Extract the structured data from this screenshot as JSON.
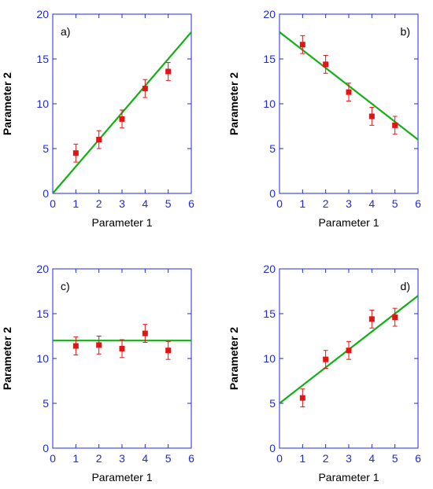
{
  "colors": {
    "axis": "#1f2bd6",
    "text": "#000000",
    "tick_label": "#1f2bd6",
    "points": "#e21414",
    "fit_line": "#12b014"
  },
  "chart_data": [
    {
      "type": "scatter",
      "panel_label": "a)",
      "xlabel": "Parameter 1",
      "ylabel": "Parameter 2",
      "xlim": [
        0,
        6
      ],
      "ylim": [
        0,
        20
      ],
      "xticks": [
        0,
        1,
        2,
        3,
        4,
        5,
        6
      ],
      "yticks": [
        0,
        5,
        10,
        15,
        20
      ],
      "grid": false,
      "series": [
        {
          "x": [
            1,
            2,
            3,
            4,
            5
          ],
          "y": [
            4.5,
            6.0,
            8.3,
            11.7,
            13.6
          ],
          "yerr": [
            1.0,
            1.0,
            1.0,
            1.0,
            1.0
          ]
        }
      ],
      "fit_line": {
        "x": [
          0,
          6
        ],
        "y": [
          0,
          18
        ]
      }
    },
    {
      "type": "scatter",
      "panel_label": "b)",
      "xlabel": "Parameter 1",
      "ylabel": "Parameter 2",
      "xlim": [
        0,
        6
      ],
      "ylim": [
        0,
        20
      ],
      "xticks": [
        0,
        1,
        2,
        3,
        4,
        5,
        6
      ],
      "yticks": [
        0,
        5,
        10,
        15,
        20
      ],
      "grid": false,
      "series": [
        {
          "x": [
            1,
            2,
            3,
            4,
            5
          ],
          "y": [
            16.6,
            14.4,
            11.3,
            8.6,
            7.6
          ],
          "yerr": [
            1.0,
            1.0,
            1.0,
            1.0,
            1.0
          ]
        }
      ],
      "fit_line": {
        "x": [
          0,
          6
        ],
        "y": [
          18,
          6
        ]
      }
    },
    {
      "type": "scatter",
      "panel_label": "c)",
      "xlabel": "Parameter 1",
      "ylabel": "Parameter 2",
      "xlim": [
        0,
        6
      ],
      "ylim": [
        0,
        20
      ],
      "xticks": [
        0,
        1,
        2,
        3,
        4,
        5,
        6
      ],
      "yticks": [
        0,
        5,
        10,
        15,
        20
      ],
      "grid": false,
      "series": [
        {
          "x": [
            1,
            2,
            3,
            4,
            5
          ],
          "y": [
            11.4,
            11.5,
            11.1,
            12.8,
            10.9
          ],
          "yerr": [
            1.0,
            1.0,
            1.0,
            1.0,
            1.0
          ]
        }
      ],
      "fit_line": {
        "x": [
          0,
          6
        ],
        "y": [
          12,
          12
        ]
      }
    },
    {
      "type": "scatter",
      "panel_label": "d)",
      "xlabel": "Parameter 1",
      "ylabel": "Parameter 2",
      "xlim": [
        0,
        6
      ],
      "ylim": [
        0,
        20
      ],
      "xticks": [
        0,
        1,
        2,
        3,
        4,
        5,
        6
      ],
      "yticks": [
        0,
        5,
        10,
        15,
        20
      ],
      "grid": false,
      "series": [
        {
          "x": [
            1,
            2,
            3,
            4,
            5
          ],
          "y": [
            5.6,
            9.9,
            10.9,
            14.4,
            14.6
          ],
          "yerr": [
            1.0,
            1.0,
            1.0,
            1.0,
            1.0
          ]
        }
      ],
      "fit_line": {
        "x": [
          0,
          6
        ],
        "y": [
          5,
          17
        ]
      }
    }
  ]
}
